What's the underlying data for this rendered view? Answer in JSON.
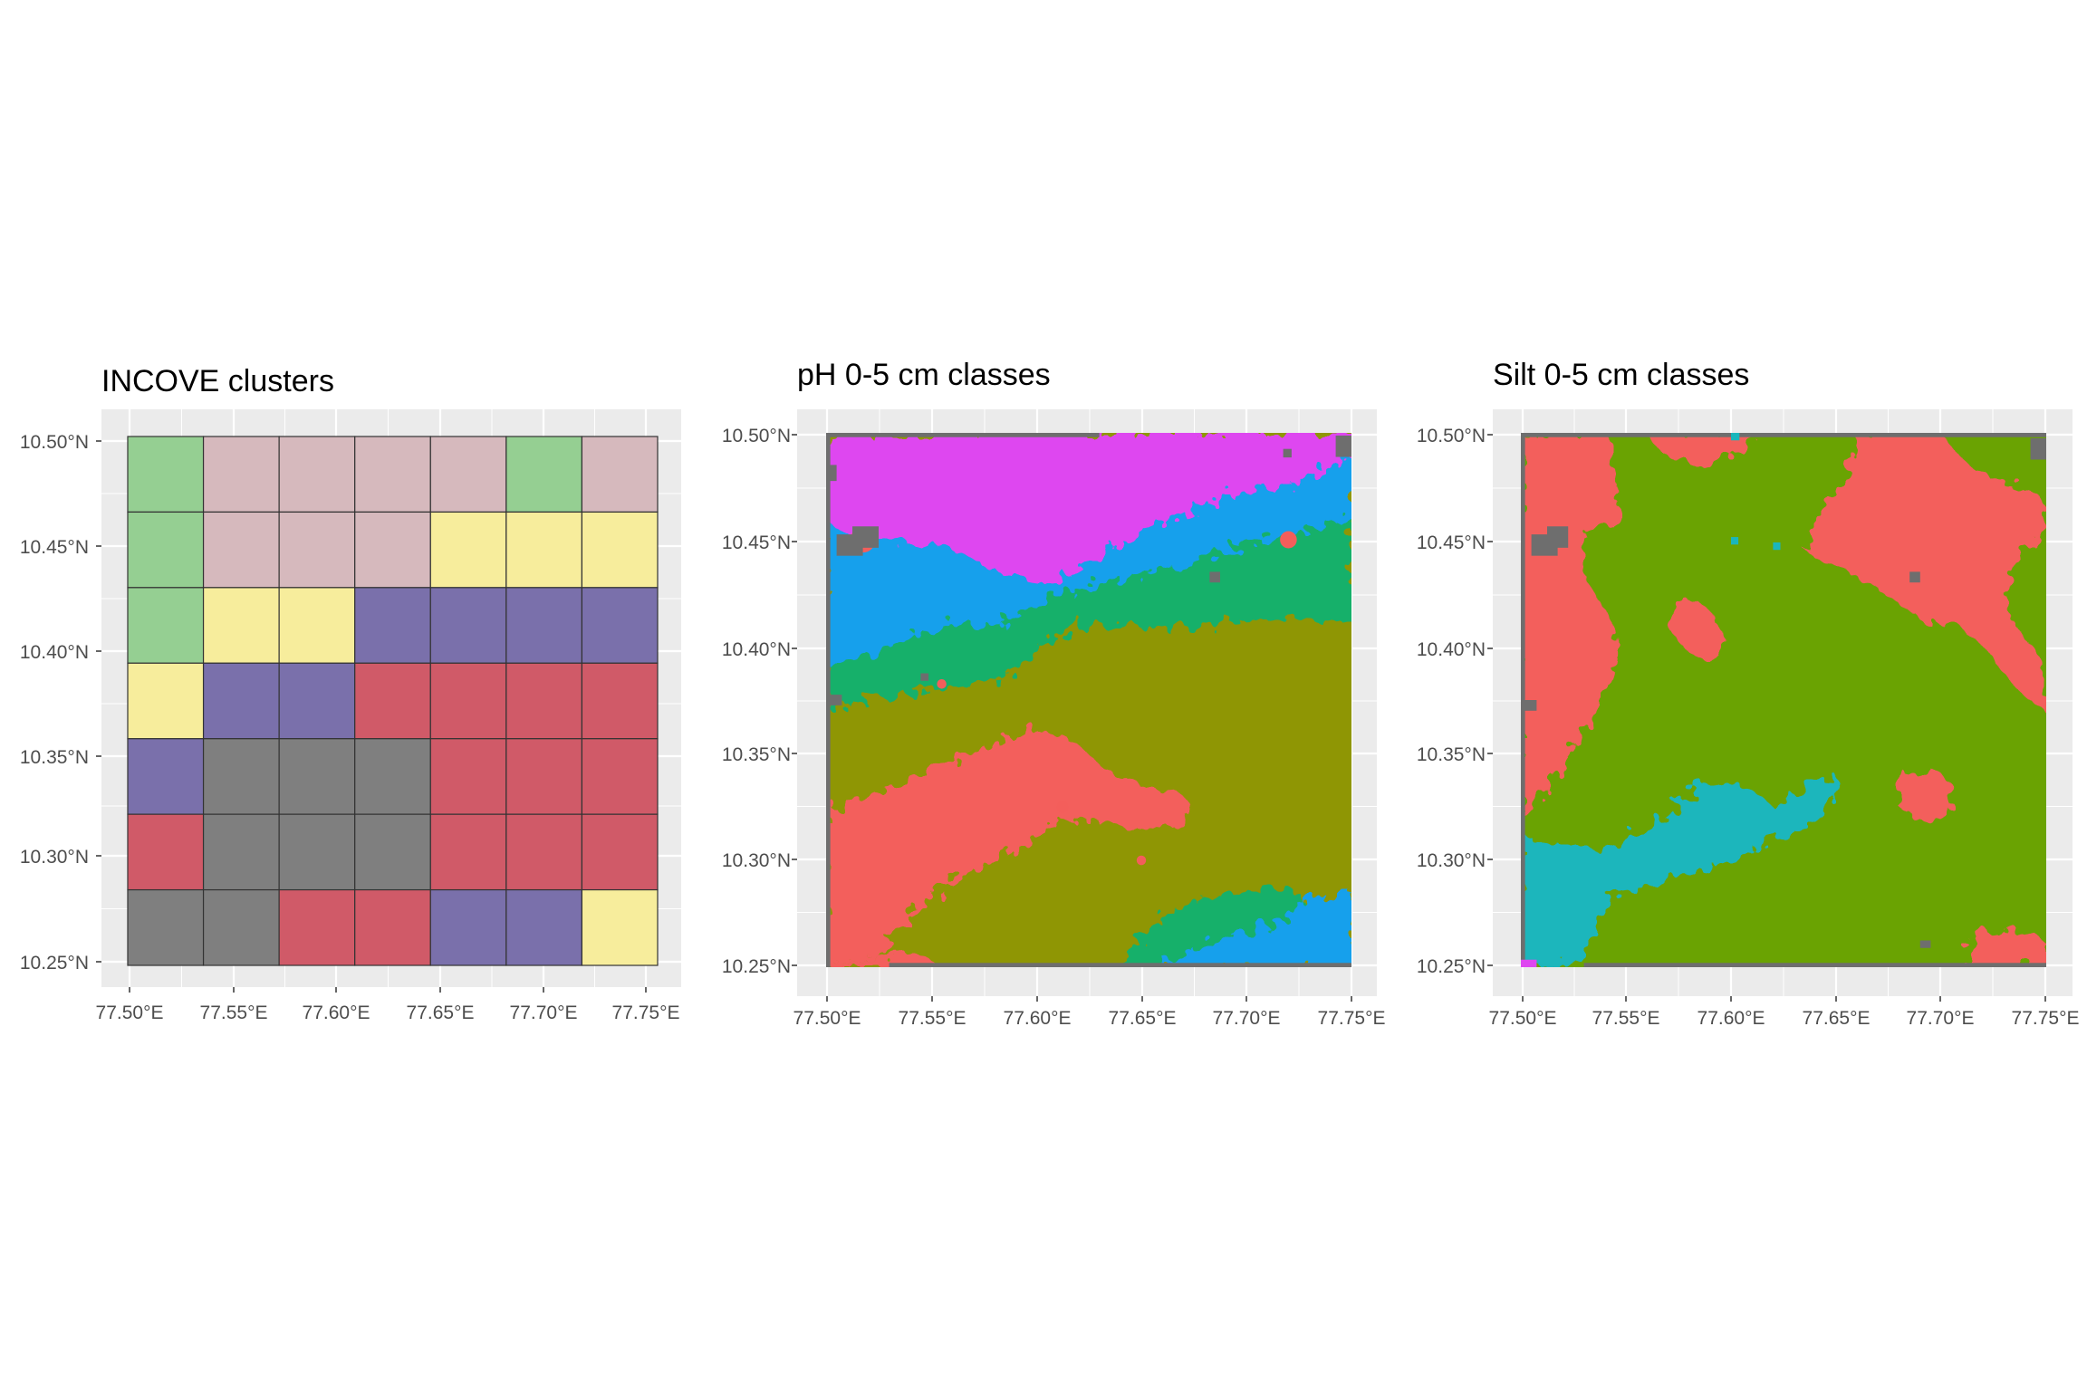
{
  "figure": {
    "background": "#ffffff",
    "panel_background": "#ebebeb",
    "grid_color": "#ffffff",
    "tick_color": "#333333",
    "boundary_color": "#6b6b6b"
  },
  "panels": [
    {
      "id": "incove",
      "title": "INCOVE clusters",
      "type": "vector-grid",
      "x_ticks": [
        "77.50°E",
        "77.55°E",
        "77.60°E",
        "77.65°E",
        "77.70°E",
        "77.75°E"
      ],
      "y_ticks": [
        "10.50°N",
        "10.45°N",
        "10.40°N",
        "10.35°N",
        "10.30°N",
        "10.25°N"
      ],
      "x_range": [
        77.5,
        77.75
      ],
      "y_range": [
        10.25,
        10.5
      ],
      "cell_border": "#333333",
      "palette": {
        "green": "#95cf92",
        "mauve": "#d6b9bd",
        "yellow": "#f7ed9c",
        "purple": "#7a70ab",
        "red": "#d05a68",
        "gray": "#7f7f7f"
      },
      "grid_rows": [
        [
          "green",
          "mauve",
          "mauve",
          "mauve",
          "mauve",
          "green",
          "mauve"
        ],
        [
          "green",
          "mauve",
          "mauve",
          "mauve",
          "yellow",
          "yellow",
          "yellow"
        ],
        [
          "green",
          "yellow",
          "yellow",
          "purple",
          "purple",
          "purple",
          "purple"
        ],
        [
          "yellow",
          "purple",
          "purple",
          "red",
          "red",
          "red",
          "red"
        ],
        [
          "purple",
          "gray",
          "gray",
          "gray",
          "red",
          "red",
          "red"
        ],
        [
          "red",
          "gray",
          "gray",
          "gray",
          "red",
          "red",
          "red"
        ],
        [
          "gray",
          "gray",
          "red",
          "red",
          "purple",
          "purple",
          "yellow"
        ]
      ]
    },
    {
      "id": "ph",
      "title": "pH 0-5 cm classes",
      "type": "raster",
      "x_ticks": [
        "77.50°E",
        "77.55°E",
        "77.60°E",
        "77.65°E",
        "77.70°E",
        "77.75°E"
      ],
      "y_ticks": [
        "10.50°N",
        "10.45°N",
        "10.40°N",
        "10.35°N",
        "10.30°N",
        "10.25°N"
      ],
      "x_range": [
        77.5,
        77.75
      ],
      "y_range": [
        10.25,
        10.5
      ],
      "palette": {
        "magenta": "#de47f0",
        "blue": "#17a0ec",
        "green": "#15b06b",
        "olive": "#8f9604",
        "salmon": "#f35e5b",
        "gray": "#6e6e6e"
      }
    },
    {
      "id": "silt",
      "title": "Silt 0-5 cm classes",
      "type": "raster",
      "x_ticks": [
        "77.50°E",
        "77.55°E",
        "77.60°E",
        "77.65°E",
        "77.70°E",
        "77.75°E"
      ],
      "y_ticks": [
        "10.50°N",
        "10.45°N",
        "10.40°N",
        "10.35°N",
        "10.30°N",
        "10.25°N"
      ],
      "x_range": [
        77.5,
        77.75
      ],
      "y_range": [
        10.25,
        10.5
      ],
      "palette": {
        "salmon": "#f35e5b",
        "green": "#6aa302",
        "teal": "#1ab6bc",
        "magenta": "#de47f0",
        "gray": "#6e6e6e"
      }
    }
  ]
}
